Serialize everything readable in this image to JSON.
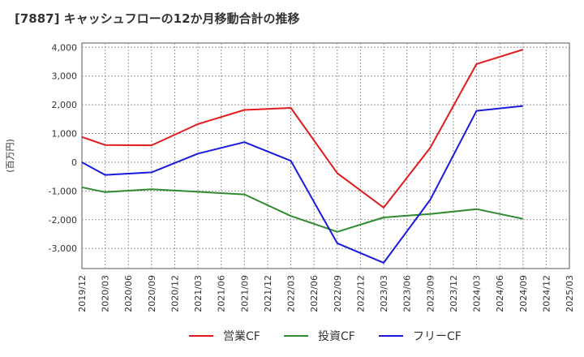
{
  "chart_data": {
    "type": "line",
    "title": "[7887]  キャッシュフローの12か月移動合計の推移",
    "ylabel": "(百万円)",
    "xlabel": "",
    "ylim": [
      -3700,
      4150
    ],
    "yticks": [
      4000,
      3000,
      2000,
      1000,
      0,
      -1000,
      -2000,
      -3000
    ],
    "ytick_labels": [
      "4,000",
      "3,000",
      "2,000",
      "1,000",
      "0",
      "-1,000",
      "-2,000",
      "-3,000"
    ],
    "categories": [
      "2019/12",
      "2020/03",
      "2020/06",
      "2020/09",
      "2020/12",
      "2021/03",
      "2021/06",
      "2021/09",
      "2021/12",
      "2022/03",
      "2022/06",
      "2022/09",
      "2022/12",
      "2023/03",
      "2023/06",
      "2023/09",
      "2023/12",
      "2024/03",
      "2024/06",
      "2024/09",
      "2024/12",
      "2025/03"
    ],
    "grid": true,
    "legend_position": "bottom",
    "series": [
      {
        "name": "営業CF",
        "color": "#e31a1c",
        "values": [
          880,
          600,
          null,
          590,
          null,
          1330,
          null,
          1820,
          null,
          1890,
          null,
          -380,
          null,
          -1580,
          null,
          500,
          null,
          3420,
          null,
          3920,
          null,
          null
        ]
      },
      {
        "name": "投資CF",
        "color": "#2e8b2e",
        "values": [
          -870,
          -1040,
          null,
          -940,
          null,
          -1030,
          null,
          -1120,
          null,
          -1870,
          null,
          -2420,
          null,
          -1920,
          null,
          -1800,
          null,
          -1630,
          null,
          -1970,
          null,
          null
        ]
      },
      {
        "name": "フリーCF",
        "color": "#1a1adc",
        "values": [
          0,
          -440,
          null,
          -350,
          null,
          300,
          null,
          700,
          null,
          50,
          null,
          -2820,
          null,
          -3500,
          null,
          -1310,
          null,
          1790,
          null,
          1960,
          null,
          null
        ]
      }
    ]
  }
}
